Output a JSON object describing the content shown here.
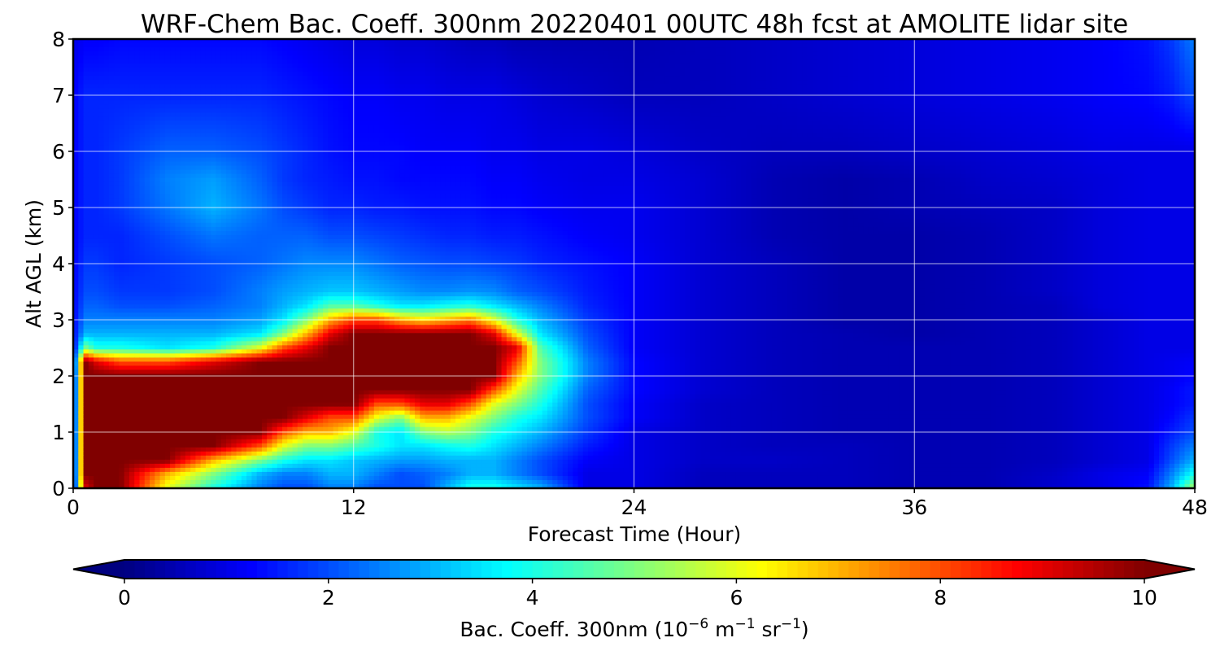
{
  "chart_data": {
    "type": "heatmap",
    "title": "WRF-Chem Bac. Coeff. 300nm  20220401 00UTC 48h fcst at AMOLITE lidar site",
    "xlabel": "Forecast Time (Hour)",
    "ylabel": "Alt AGL (km)",
    "xlim": [
      0,
      48
    ],
    "ylim": [
      0,
      8
    ],
    "xticks": [
      0,
      12,
      24,
      36,
      48
    ],
    "yticks": [
      0,
      1,
      2,
      3,
      4,
      5,
      6,
      7,
      8
    ],
    "grid": true,
    "colormap": "jet",
    "colorbar": {
      "label_main": "Bac. Coeff. 300nm  (10",
      "label_exp1": "−6",
      "label_unit_m": " m",
      "label_exp2": "−1",
      "label_unit_sr": " sr",
      "label_exp3": "−1",
      "label_close": ")",
      "range": [
        0,
        10
      ],
      "ticks": [
        0,
        2,
        4,
        6,
        8,
        10
      ],
      "extend": "both",
      "orientation": "horizontal"
    },
    "x": [
      0,
      0.5,
      1,
      2,
      4,
      6,
      8,
      9,
      10,
      11,
      12,
      13,
      14,
      15,
      16,
      17,
      18,
      19,
      20,
      22,
      24,
      27,
      30,
      33,
      36,
      39,
      42,
      44,
      46,
      47,
      48
    ],
    "y": [
      0,
      0.25,
      0.5,
      0.75,
      1,
      1.25,
      1.5,
      1.75,
      2,
      2.25,
      2.5,
      2.75,
      3,
      3.25,
      3.5,
      4,
      4.5,
      5,
      5.5,
      6,
      7,
      8
    ],
    "z": [
      [
        0.5,
        9,
        10,
        10,
        6,
        4,
        2.5,
        2,
        2,
        2.5,
        2.5,
        2,
        2,
        2,
        3,
        4,
        4,
        3.5,
        3,
        1,
        1,
        0.6,
        0.6,
        0.6,
        0.5,
        0.5,
        0.8,
        1,
        1.4,
        3,
        5.5
      ],
      [
        0.5,
        10,
        10,
        10,
        7,
        5,
        3,
        2.5,
        2.5,
        3,
        3,
        2.5,
        2,
        2.2,
        2.5,
        3,
        3,
        2.5,
        2,
        1,
        1,
        0.6,
        0.6,
        0.6,
        0.5,
        0.5,
        0.7,
        1,
        1.2,
        2.5,
        4
      ],
      [
        0.5,
        10,
        10,
        10,
        10,
        7,
        5,
        4,
        3.5,
        3.5,
        3.2,
        3,
        2.8,
        2.8,
        3,
        3,
        3,
        2.5,
        2,
        1.2,
        1,
        0.7,
        0.7,
        0.6,
        0.5,
        0.5,
        0.6,
        0.8,
        1,
        2,
        3
      ],
      [
        0.5,
        10,
        10,
        10,
        10,
        10,
        8,
        6,
        5,
        5,
        4.5,
        4,
        3.5,
        3.5,
        3.8,
        4,
        3.5,
        3,
        2.5,
        1.5,
        1,
        0.7,
        0.6,
        0.6,
        0.5,
        0.5,
        0.6,
        0.8,
        1,
        1.8,
        2.5
      ],
      [
        0.5,
        10,
        10,
        10,
        10,
        10,
        10,
        8,
        7,
        7,
        6,
        4,
        3.5,
        5,
        5.5,
        5,
        4,
        3.5,
        3,
        1.8,
        1,
        0.7,
        0.6,
        0.5,
        0.5,
        0.5,
        0.6,
        0.8,
        1,
        1.5,
        2
      ],
      [
        0.5,
        10,
        10,
        10,
        10,
        10,
        10,
        10,
        9,
        8,
        8,
        6,
        5,
        7,
        7,
        6,
        5,
        4,
        3.5,
        2,
        1.2,
        0.7,
        0.6,
        0.5,
        0.5,
        0.5,
        0.6,
        0.8,
        1,
        1.3,
        1.8
      ],
      [
        0.5,
        10,
        10,
        10,
        10,
        10,
        10,
        10,
        10,
        10,
        10,
        8,
        8,
        9,
        9,
        8,
        6,
        5,
        4,
        2,
        1.2,
        0.7,
        0.6,
        0.5,
        0.5,
        0.5,
        0.6,
        0.8,
        1,
        1.2,
        1.5
      ],
      [
        0.5,
        10,
        10,
        10,
        10,
        10,
        10,
        10,
        10,
        10,
        10,
        10,
        10,
        10,
        10,
        10,
        8,
        6,
        4.5,
        2.2,
        1.3,
        0.8,
        0.6,
        0.5,
        0.5,
        0.5,
        0.6,
        0.8,
        1,
        1.2,
        1.5
      ],
      [
        0.5,
        10,
        10,
        10,
        10,
        10,
        10,
        10,
        10,
        10,
        10,
        10,
        10,
        10,
        10,
        10,
        10,
        7,
        5,
        2.5,
        1.3,
        0.8,
        0.6,
        0.5,
        0.5,
        0.5,
        0.6,
        0.8,
        1,
        1.1,
        1.3
      ],
      [
        0.8,
        10,
        9,
        8,
        8,
        9,
        10,
        10,
        10,
        10,
        10,
        10,
        10,
        10,
        10,
        10,
        10,
        8,
        5,
        2.5,
        1.3,
        0.8,
        0.6,
        0.5,
        0.5,
        0.5,
        0.6,
        0.8,
        1,
        1.1,
        1.2
      ],
      [
        1,
        5,
        4,
        4,
        3.5,
        4,
        6,
        8,
        9,
        10,
        10,
        10,
        10,
        10,
        10,
        10,
        10,
        9,
        4.5,
        2.2,
        1.2,
        0.8,
        0.6,
        0.5,
        0.5,
        0.5,
        0.6,
        0.8,
        1,
        1,
        1
      ],
      [
        1.2,
        3,
        3,
        3,
        3,
        3,
        3.5,
        5,
        7,
        9,
        10,
        10,
        10,
        10,
        10,
        10,
        9,
        6,
        3.5,
        2,
        1.2,
        0.8,
        0.6,
        0.5,
        0.4,
        0.5,
        0.6,
        0.8,
        1,
        1,
        1
      ],
      [
        1.2,
        2.5,
        2.5,
        2.5,
        2.5,
        2.5,
        2.8,
        3.5,
        5,
        7,
        8,
        8,
        7,
        6.5,
        7,
        7.5,
        6,
        4,
        3,
        1.8,
        1.2,
        0.8,
        0.6,
        0.4,
        0.4,
        0.5,
        0.6,
        0.8,
        1,
        1,
        1
      ],
      [
        1.2,
        2.2,
        2.2,
        2,
        2,
        2.2,
        2.5,
        3,
        3.5,
        4.5,
        4.5,
        4,
        3.5,
        3.5,
        3.8,
        4,
        3.5,
        3,
        2.5,
        1.6,
        1.2,
        0.8,
        0.6,
        0.4,
        0.4,
        0.5,
        0.6,
        0.9,
        1,
        1,
        1
      ],
      [
        1.2,
        2,
        2,
        1.8,
        1.8,
        2,
        2.5,
        2.8,
        3,
        3.2,
        3.2,
        3,
        2.8,
        2.6,
        2.6,
        2.7,
        2.6,
        2.2,
        2,
        1.5,
        1.2,
        0.8,
        0.6,
        0.4,
        0.4,
        0.5,
        0.7,
        0.9,
        1,
        1,
        1
      ],
      [
        1.2,
        1.8,
        1.8,
        1.6,
        1.8,
        2,
        2.2,
        2.4,
        2.6,
        2.6,
        2.6,
        2.4,
        2.2,
        2.1,
        2,
        2,
        1.9,
        1.8,
        1.6,
        1.4,
        1.2,
        0.8,
        0.6,
        0.4,
        0.4,
        0.5,
        0.7,
        0.9,
        1,
        1,
        1
      ],
      [
        1.2,
        1.6,
        1.6,
        1.6,
        2,
        2.4,
        2.2,
        2.2,
        2.2,
        2,
        2,
        1.9,
        1.8,
        1.7,
        1.6,
        1.6,
        1.5,
        1.5,
        1.4,
        1.2,
        1.1,
        0.8,
        0.5,
        0.4,
        0.4,
        0.5,
        0.7,
        0.9,
        1,
        1,
        1
      ],
      [
        1.2,
        1.6,
        1.6,
        1.8,
        2.4,
        3,
        2.4,
        2,
        1.8,
        1.6,
        1.6,
        1.5,
        1.5,
        1.4,
        1.4,
        1.4,
        1.3,
        1.3,
        1.2,
        1.1,
        1.1,
        0.8,
        0.5,
        0.4,
        0.5,
        0.6,
        0.7,
        0.9,
        1,
        1,
        1
      ],
      [
        1.2,
        1.6,
        1.6,
        1.8,
        2.5,
        2.8,
        2.2,
        1.8,
        1.6,
        1.5,
        1.4,
        1.4,
        1.3,
        1.3,
        1.3,
        1.3,
        1.2,
        1.2,
        1.1,
        1,
        1,
        0.8,
        0.5,
        0.4,
        0.5,
        0.7,
        0.8,
        0.9,
        1,
        1,
        1
      ],
      [
        1.2,
        1.6,
        1.6,
        1.8,
        2.2,
        2.2,
        2,
        1.8,
        1.6,
        1.4,
        1.3,
        1.3,
        1.3,
        1.2,
        1.2,
        1.2,
        1.1,
        1.1,
        1,
        1,
        0.9,
        0.7,
        0.6,
        0.6,
        0.7,
        0.8,
        0.9,
        1,
        1,
        1,
        1
      ],
      [
        1.2,
        1.6,
        1.6,
        1.6,
        1.6,
        1.6,
        1.6,
        1.5,
        1.4,
        1.3,
        1.2,
        1.2,
        1.1,
        1.1,
        1,
        1,
        1,
        0.9,
        0.8,
        0.7,
        0.6,
        0.6,
        0.7,
        0.8,
        0.9,
        1,
        1.1,
        1.2,
        1.3,
        1.5,
        2
      ],
      [
        1,
        1.2,
        1.2,
        1.3,
        1.3,
        1.3,
        1.3,
        1.2,
        1.1,
        1,
        0.9,
        0.9,
        0.8,
        0.8,
        0.7,
        0.6,
        0.6,
        0.5,
        0.5,
        0.5,
        0.5,
        0.6,
        0.7,
        0.8,
        0.9,
        1,
        1.1,
        1.2,
        1.4,
        1.8,
        2.5
      ]
    ]
  }
}
